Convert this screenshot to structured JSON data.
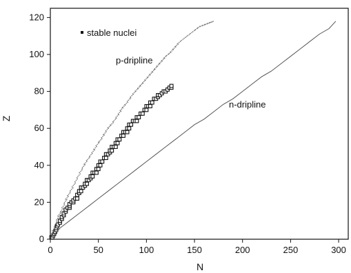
{
  "chart_data": {
    "type": "scatter",
    "title": "",
    "xlabel": "N",
    "ylabel": "Z",
    "xlim": [
      0,
      310
    ],
    "ylim": [
      0,
      125
    ],
    "grid": false,
    "x_ticks": [
      0,
      50,
      100,
      150,
      200,
      250,
      300
    ],
    "y_ticks": [
      0,
      20,
      40,
      60,
      80,
      100,
      120
    ],
    "legend": [
      {
        "label": "stable nuclei",
        "marker": "square"
      }
    ],
    "annotations": [
      {
        "text": "p-dripline"
      },
      {
        "text": "n-dripline"
      }
    ],
    "series": [
      {
        "name": "stable nuclei",
        "style": "points",
        "color": "#111111",
        "points": [
          [
            1,
            1
          ],
          [
            2,
            1
          ],
          [
            3,
            2
          ],
          [
            4,
            3
          ],
          [
            5,
            4
          ],
          [
            6,
            5
          ],
          [
            6,
            6
          ],
          [
            7,
            7
          ],
          [
            8,
            8
          ],
          [
            10,
            9
          ],
          [
            10,
            10
          ],
          [
            12,
            11
          ],
          [
            12,
            12
          ],
          [
            14,
            13
          ],
          [
            14,
            14
          ],
          [
            16,
            15
          ],
          [
            16,
            16
          ],
          [
            18,
            17
          ],
          [
            20,
            17
          ],
          [
            20,
            18
          ],
          [
            20,
            19
          ],
          [
            22,
            20
          ],
          [
            24,
            20
          ],
          [
            24,
            21
          ],
          [
            26,
            22
          ],
          [
            28,
            22
          ],
          [
            28,
            24
          ],
          [
            30,
            25
          ],
          [
            30,
            26
          ],
          [
            32,
            26
          ],
          [
            32,
            28
          ],
          [
            34,
            28
          ],
          [
            36,
            29
          ],
          [
            36,
            30
          ],
          [
            38,
            30
          ],
          [
            38,
            32
          ],
          [
            40,
            32
          ],
          [
            42,
            33
          ],
          [
            42,
            34
          ],
          [
            44,
            34
          ],
          [
            44,
            36
          ],
          [
            46,
            36
          ],
          [
            48,
            36
          ],
          [
            48,
            38
          ],
          [
            50,
            38
          ],
          [
            50,
            40
          ],
          [
            52,
            40
          ],
          [
            52,
            42
          ],
          [
            54,
            42
          ],
          [
            56,
            44
          ],
          [
            58,
            44
          ],
          [
            58,
            46
          ],
          [
            60,
            46
          ],
          [
            62,
            47
          ],
          [
            62,
            48
          ],
          [
            64,
            48
          ],
          [
            64,
            50
          ],
          [
            66,
            50
          ],
          [
            68,
            50
          ],
          [
            68,
            52
          ],
          [
            70,
            52
          ],
          [
            70,
            54
          ],
          [
            72,
            54
          ],
          [
            74,
            56
          ],
          [
            76,
            56
          ],
          [
            76,
            58
          ],
          [
            78,
            58
          ],
          [
            80,
            58
          ],
          [
            80,
            60
          ],
          [
            82,
            60
          ],
          [
            82,
            62
          ],
          [
            84,
            62
          ],
          [
            86,
            64
          ],
          [
            88,
            64
          ],
          [
            90,
            64
          ],
          [
            90,
            66
          ],
          [
            92,
            66
          ],
          [
            94,
            68
          ],
          [
            96,
            68
          ],
          [
            98,
            70
          ],
          [
            100,
            70
          ],
          [
            100,
            72
          ],
          [
            102,
            72
          ],
          [
            104,
            72
          ],
          [
            104,
            74
          ],
          [
            106,
            74
          ],
          [
            108,
            76
          ],
          [
            110,
            76
          ],
          [
            112,
            77
          ],
          [
            112,
            78
          ],
          [
            114,
            78
          ],
          [
            116,
            79
          ],
          [
            118,
            80
          ],
          [
            120,
            80
          ],
          [
            122,
            81
          ],
          [
            124,
            82
          ],
          [
            126,
            82
          ],
          [
            126,
            83
          ]
        ]
      },
      {
        "name": "p-dripline",
        "style": "zigzag",
        "color": "#7a7a7a",
        "points": [
          [
            1,
            2
          ],
          [
            4,
            6
          ],
          [
            8,
            12
          ],
          [
            12,
            16
          ],
          [
            16,
            21
          ],
          [
            20,
            25
          ],
          [
            25,
            30
          ],
          [
            30,
            35
          ],
          [
            35,
            40
          ],
          [
            40,
            44
          ],
          [
            45,
            48
          ],
          [
            50,
            52
          ],
          [
            55,
            56
          ],
          [
            60,
            60
          ],
          [
            65,
            63
          ],
          [
            70,
            67
          ],
          [
            75,
            71
          ],
          [
            80,
            74
          ],
          [
            85,
            78
          ],
          [
            90,
            81
          ],
          [
            95,
            84
          ],
          [
            100,
            87
          ],
          [
            105,
            90
          ],
          [
            110,
            93
          ],
          [
            115,
            96
          ],
          [
            120,
            99
          ],
          [
            125,
            101
          ],
          [
            130,
            104
          ],
          [
            135,
            107
          ],
          [
            140,
            109
          ],
          [
            145,
            111
          ],
          [
            150,
            113
          ],
          [
            155,
            115
          ],
          [
            160,
            116
          ],
          [
            165,
            117
          ],
          [
            170,
            118
          ]
        ]
      },
      {
        "name": "n-dripline",
        "style": "line",
        "color": "#555555",
        "points": [
          [
            2,
            1
          ],
          [
            10,
            6
          ],
          [
            20,
            10
          ],
          [
            30,
            14
          ],
          [
            40,
            18
          ],
          [
            50,
            22
          ],
          [
            60,
            26
          ],
          [
            70,
            30
          ],
          [
            80,
            34
          ],
          [
            90,
            38
          ],
          [
            100,
            42
          ],
          [
            110,
            46
          ],
          [
            120,
            50
          ],
          [
            130,
            54
          ],
          [
            140,
            58
          ],
          [
            150,
            62
          ],
          [
            160,
            65
          ],
          [
            170,
            69
          ],
          [
            180,
            73
          ],
          [
            190,
            76
          ],
          [
            200,
            80
          ],
          [
            210,
            84
          ],
          [
            220,
            88
          ],
          [
            230,
            91
          ],
          [
            240,
            95
          ],
          [
            250,
            99
          ],
          [
            260,
            103
          ],
          [
            270,
            107
          ],
          [
            280,
            111
          ],
          [
            290,
            114
          ],
          [
            297,
            118
          ]
        ]
      }
    ]
  }
}
